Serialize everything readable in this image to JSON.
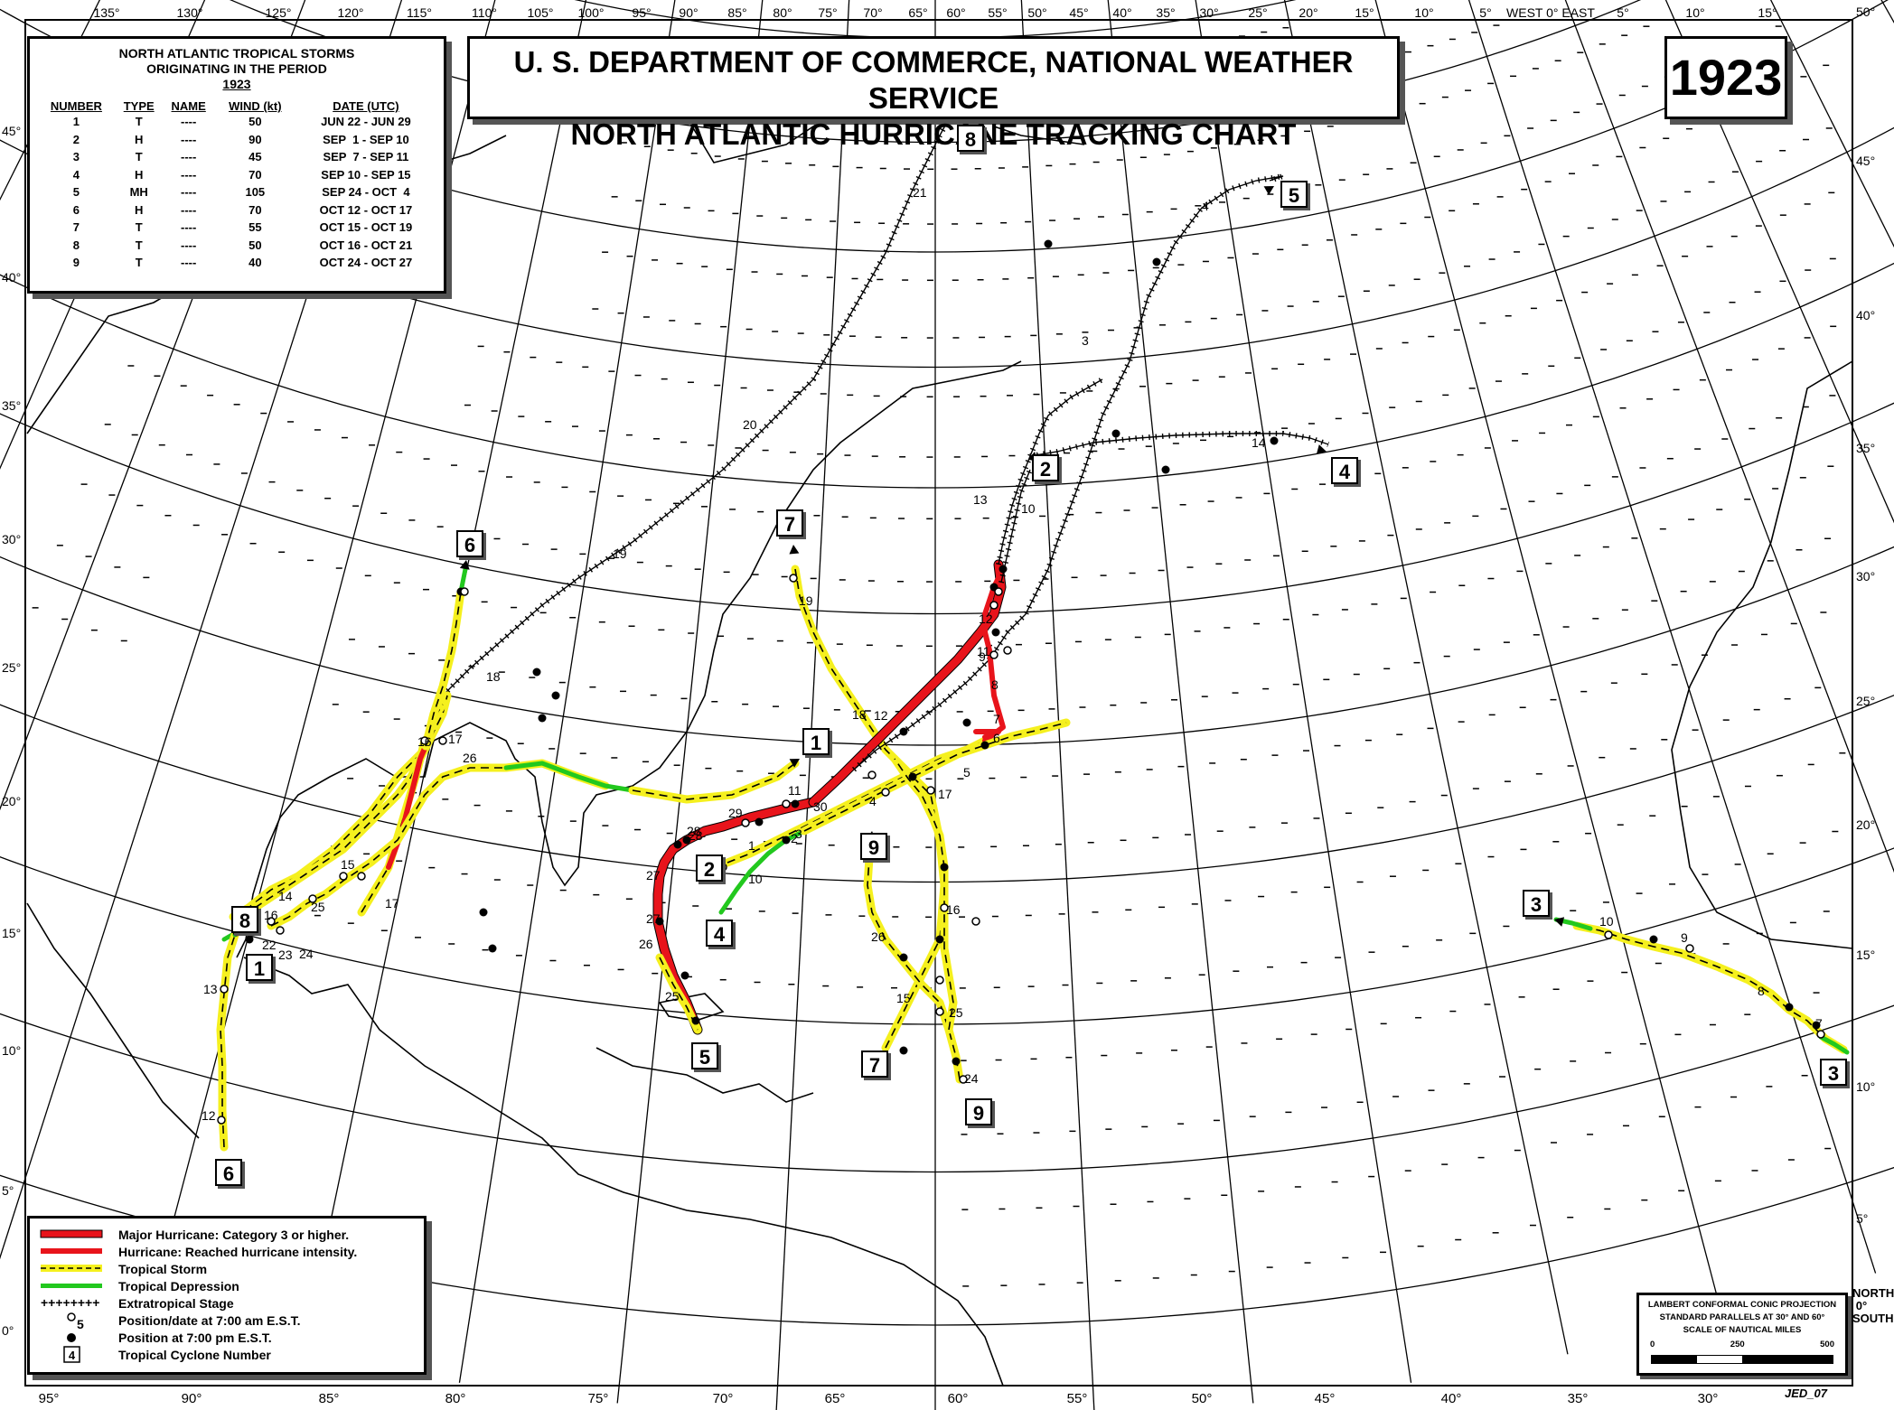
{
  "title": {
    "line1": "U. S. DEPARTMENT OF COMMERCE, NATIONAL WEATHER SERVICE",
    "line2": "NORTH ATLANTIC HURRICANE TRACKING CHART"
  },
  "year": "1923",
  "storm_table": {
    "heading1": "NORTH ATLANTIC TROPICAL STORMS",
    "heading2": "ORIGINATING IN THE PERIOD",
    "heading3": "1923",
    "columns": [
      "NUMBER",
      "TYPE",
      "NAME",
      "WIND (kt)",
      "DATE (UTC)"
    ],
    "rows": [
      [
        "1",
        "T",
        "----",
        "50",
        "JUN 22 - JUN 29"
      ],
      [
        "2",
        "H",
        "----",
        "90",
        "SEP  1 - SEP 10"
      ],
      [
        "3",
        "T",
        "----",
        "45",
        "SEP  7 - SEP 11"
      ],
      [
        "4",
        "H",
        "----",
        "70",
        "SEP 10 - SEP 15"
      ],
      [
        "5",
        "MH",
        "----",
        "105",
        "SEP 24 - OCT  4"
      ],
      [
        "6",
        "H",
        "----",
        "70",
        "OCT 12 - OCT 17"
      ],
      [
        "7",
        "T",
        "----",
        "55",
        "OCT 15 - OCT 19"
      ],
      [
        "8",
        "T",
        "----",
        "50",
        "OCT 16 - OCT 21"
      ],
      [
        "9",
        "T",
        "----",
        "40",
        "OCT 24 - OCT 27"
      ]
    ]
  },
  "legend": {
    "major_hurricane": "Major Hurricane: Category 3 or higher.",
    "hurricane": "Hurricane: Reached hurricane intensity.",
    "tropical_storm": "Tropical Storm",
    "tropical_depression": "Tropical Depression",
    "extratropical": "Extratropical Stage",
    "position_am": "Position/date at 7:00 am E.S.T.",
    "position_pm": "Position at 7:00 pm E.S.T.",
    "cyclone_number": "Tropical Cyclone Number",
    "sample_date": "5",
    "sample_number": "4"
  },
  "projection": {
    "line1": "LAMBERT CONFORMAL CONIC PROJECTION",
    "line2": "STANDARD PARALLELS AT 30° AND 60°",
    "line3": "SCALE OF NAUTICAL MILES",
    "scale_ticks": [
      "0",
      "250",
      "500"
    ]
  },
  "credit": "JED_07",
  "equator_label": "NORTH 0° SOUTH",
  "top_longitude_labels": [
    "135°",
    "130°",
    "125°",
    "120°",
    "115°",
    "110°",
    "105°",
    "100°",
    "95°",
    "90°",
    "85°",
    "80°",
    "75°",
    "70°",
    "65°",
    "60°",
    "55°",
    "50°",
    "45°",
    "40°",
    "35°",
    "30°",
    "25°",
    "20°",
    "15°",
    "10°",
    "5°",
    "WEST 0° EAST",
    "5°",
    "10°",
    "15°"
  ],
  "bottom_longitude_labels": [
    "95°",
    "90°",
    "85°",
    "80°",
    "75°",
    "70°",
    "65°",
    "60°",
    "55°",
    "50°",
    "45°",
    "40°",
    "35°",
    "30°"
  ],
  "left_latitude_labels": [
    "45°",
    "40°",
    "35°",
    "30°",
    "25°",
    "20°",
    "15°",
    "10°",
    "5°",
    "0°"
  ],
  "right_latitude_labels": [
    "50°",
    "45°",
    "40°",
    "35°",
    "30°",
    "25°",
    "20°",
    "15°",
    "10°",
    "5°"
  ],
  "colors": {
    "major_hurricane": "#e8141b",
    "hurricane": "#e8141b",
    "tropical_storm": "#f5f01e",
    "tropical_depression": "#22c81e",
    "extratropical": "#000000"
  },
  "storm_number_tags": [
    "1",
    "1",
    "2",
    "2",
    "3",
    "3",
    "4",
    "4",
    "5",
    "5",
    "6",
    "6",
    "7",
    "7",
    "8",
    "8",
    "9",
    "9"
  ],
  "date_labels": [
    "21",
    "20",
    "19",
    "18",
    "17",
    "16",
    "26",
    "15",
    "14",
    "16",
    "22",
    "23",
    "24",
    "25",
    "17",
    "13",
    "12",
    "27",
    "28",
    "29",
    "11",
    "30",
    "28",
    "27",
    "26",
    "25",
    "1",
    "10",
    "2",
    "3",
    "4",
    "5",
    "6",
    "7",
    "8",
    "9",
    "11",
    "12",
    "13",
    "10",
    "14",
    "19",
    "18",
    "12",
    "17",
    "16",
    "15",
    "25",
    "24",
    "26",
    "10",
    "9",
    "8",
    "7",
    "3",
    "4"
  ]
}
